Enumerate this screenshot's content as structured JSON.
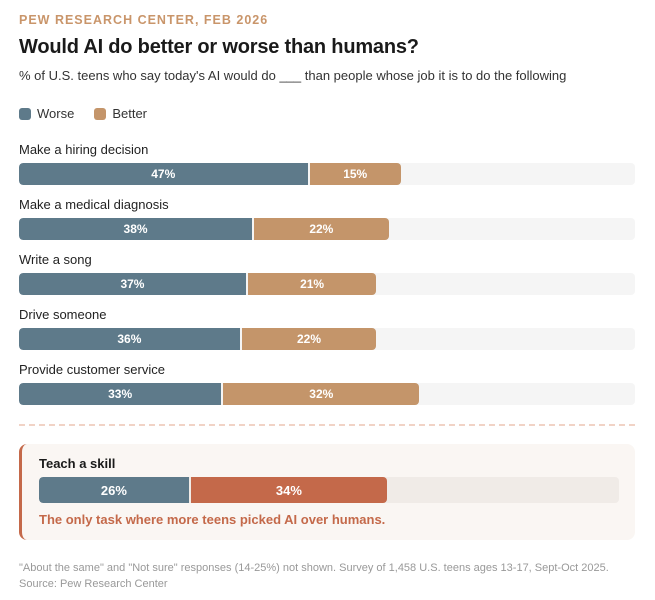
{
  "header": {
    "eyebrow": "PEW RESEARCH CENTER, FEB 2026",
    "title": "Would AI do better or worse than humans?",
    "subtitle": "% of U.S. teens who say today's AI would do ___ than people whose job it is to do the following"
  },
  "legend": [
    {
      "label": "Worse",
      "color": "#5e7a8a"
    },
    {
      "label": "Better",
      "color": "#c4956a"
    }
  ],
  "colors": {
    "worse": "#5e7a8a",
    "better": "#c4956a",
    "highlight": "#c4694a"
  },
  "chart_data": {
    "type": "bar",
    "orientation": "horizontal",
    "stacked": true,
    "title": "Would AI do better or worse than humans?",
    "subtitle": "% of U.S. teens who say today's AI would do ___ than people whose job it is to do the following",
    "xlim": [
      0,
      100
    ],
    "unit": "%",
    "categories": [
      "Make a hiring decision",
      "Make a medical diagnosis",
      "Write a song",
      "Drive someone",
      "Provide customer service",
      "Teach a skill"
    ],
    "series": [
      {
        "name": "Worse",
        "values": [
          47,
          38,
          37,
          36,
          33,
          26
        ]
      },
      {
        "name": "Better",
        "values": [
          15,
          22,
          21,
          22,
          32,
          34
        ]
      }
    ],
    "legend": "top-left",
    "annotations": [
      {
        "category": "Teach a skill",
        "text": "The only task where more teens picked AI over humans."
      }
    ]
  },
  "rows": [
    {
      "label": "Make a hiring decision",
      "worse": 47,
      "better": 15,
      "worse_label": "47%",
      "better_label": "15%"
    },
    {
      "label": "Make a medical diagnosis",
      "worse": 38,
      "better": 22,
      "worse_label": "38%",
      "better_label": "22%"
    },
    {
      "label": "Write a song",
      "worse": 37,
      "better": 21,
      "worse_label": "37%",
      "better_label": "21%"
    },
    {
      "label": "Drive someone",
      "worse": 36,
      "better": 22,
      "worse_label": "36%",
      "better_label": "22%"
    },
    {
      "label": "Provide customer service",
      "worse": 33,
      "better": 32,
      "worse_label": "33%",
      "better_label": "32%"
    }
  ],
  "callout": {
    "label": "Teach a skill",
    "worse": 26,
    "better": 34,
    "worse_label": "26%",
    "better_label": "34%",
    "note": "The only task where more teens picked AI over humans."
  },
  "footnote": "\"About the same\" and \"Not sure\" responses (14-25%) not shown. Survey of 1,458 U.S. teens ages 13-17, Sept-Oct 2025. Source: Pew Research Center"
}
